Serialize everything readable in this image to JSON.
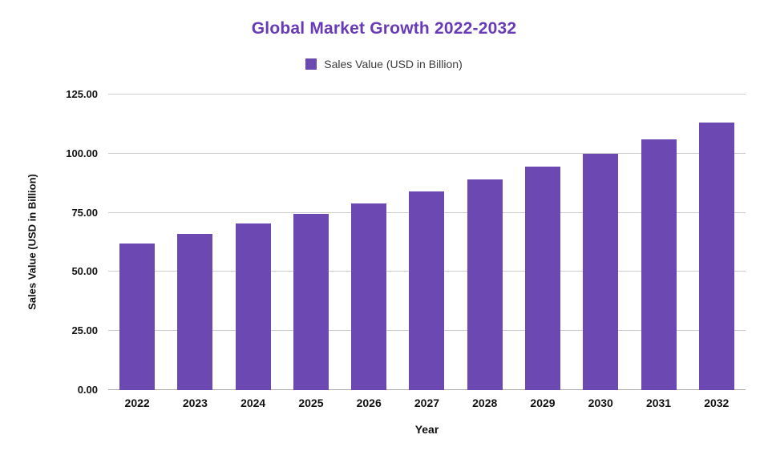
{
  "chart_data": {
    "type": "bar",
    "title": "Global Market Growth 2022-2032",
    "legend": "Sales Value (USD in Billion)",
    "xlabel": "Year",
    "ylabel": "Sales Value (USD in Billion)",
    "categories": [
      "2022",
      "2023",
      "2024",
      "2025",
      "2026",
      "2027",
      "2028",
      "2029",
      "2030",
      "2031",
      "2032"
    ],
    "values": [
      62,
      66,
      70.5,
      74.5,
      79,
      84,
      89,
      94.5,
      100,
      106,
      113
    ],
    "ylim": [
      0,
      125
    ],
    "yticks": [
      {
        "value": 0,
        "label": "0.00"
      },
      {
        "value": 25,
        "label": "25.00"
      },
      {
        "value": 50,
        "label": "50.00"
      },
      {
        "value": 75,
        "label": "75.00"
      },
      {
        "value": 100,
        "label": "100.00"
      },
      {
        "value": 125,
        "label": "125.00"
      }
    ],
    "grid": true,
    "legend_position": "top",
    "colors": {
      "bar": "#6b48b2",
      "title": "#673ab7",
      "gridline": "#cccccc",
      "baseline": "#a8a8a8",
      "axis_text": "#111111",
      "legend_text": "#3c3c3c",
      "background": "#ffffff"
    }
  }
}
